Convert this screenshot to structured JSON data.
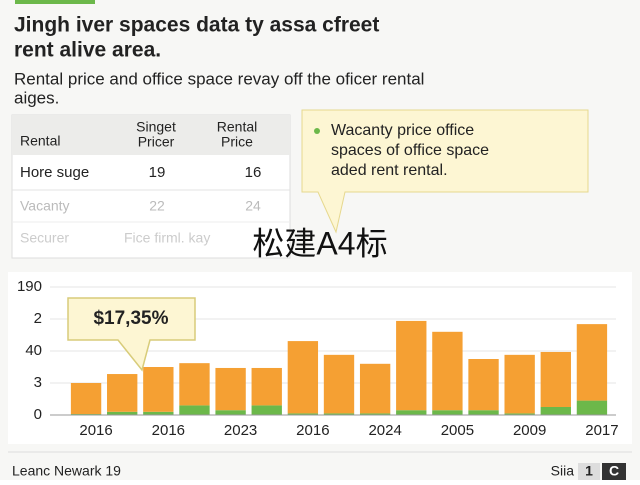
{
  "header": {
    "title_lines": [
      "Jingh iver spaces data ty assa cfreet",
      "rent alive area."
    ],
    "subtitle_lines": [
      "Rental price and office space revay off the oficer rental",
      "aiges."
    ]
  },
  "table": {
    "header": [
      "Rental",
      [
        "Singet",
        "Pricer"
      ],
      [
        "Rental",
        "Price"
      ]
    ],
    "rows": [
      [
        "Hore suge",
        "19",
        "16"
      ],
      [
        "Vacanty",
        "22",
        "24"
      ],
      [
        "Securer",
        "Fice firml. kay",
        ""
      ]
    ]
  },
  "callout": {
    "lines": [
      "Wacanty price office",
      "spaces of office space",
      "aded rent rental."
    ]
  },
  "watermark": "松建A4标",
  "chart_data": {
    "type": "stacked_bar",
    "annotation": "$17,35%",
    "categories": [
      "2016",
      null,
      "2016",
      null,
      "2023",
      null,
      "2016",
      null,
      "2024",
      null,
      "2005",
      null,
      "2009",
      null,
      "2017"
    ],
    "series": [
      {
        "name": "base",
        "color": "#6cb84a",
        "values": [
          0.03,
          0.1,
          0.1,
          0.3,
          0.15,
          0.3,
          0.05,
          0.05,
          0.05,
          0.15,
          0.15,
          0.15,
          0.05,
          0.25,
          0.45
        ]
      },
      {
        "name": "top",
        "color": "#f5a033",
        "values": [
          0.97,
          1.18,
          1.4,
          1.32,
          1.32,
          1.17,
          2.26,
          1.83,
          1.55,
          2.79,
          2.45,
          1.6,
          1.83,
          1.72,
          2.39
        ]
      }
    ],
    "ylim": [
      0,
      4
    ],
    "yticks": [
      {
        "value": 0,
        "label": "0"
      },
      {
        "value": 1,
        "label": "3"
      },
      {
        "value": 2,
        "label": "40"
      },
      {
        "value": 3,
        "label": "2"
      },
      {
        "value": 4,
        "label": "190"
      }
    ],
    "grid": true
  },
  "footer": {
    "left": "Leanc Newark 19",
    "right": "Siia",
    "badges": [
      "1",
      "C"
    ]
  }
}
